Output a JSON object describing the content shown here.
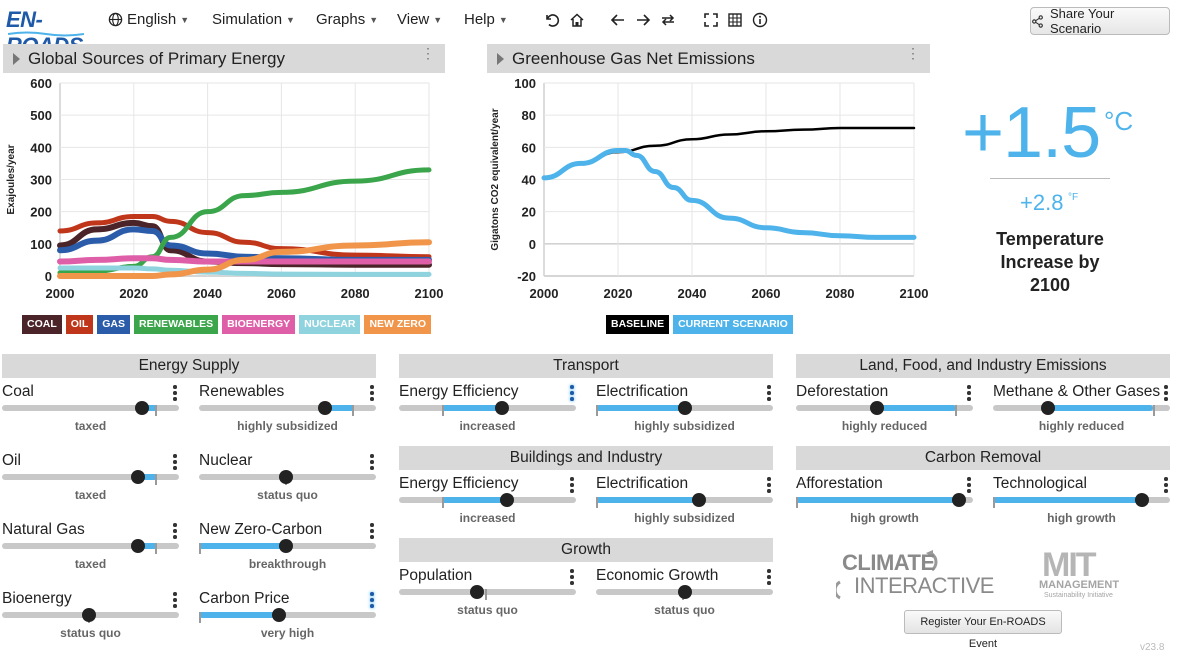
{
  "app": {
    "logo_text": "EN-ROADS"
  },
  "menu": {
    "language": "English",
    "simulation": "Simulation",
    "graphs": "Graphs",
    "view": "View",
    "help": "Help",
    "share": "Share Your Scenario"
  },
  "graph_left": {
    "title": "Global Sources of Primary Energy",
    "legend": [
      {
        "label": "COAL",
        "color": "#4a2428"
      },
      {
        "label": "OIL",
        "color": "#c0361a"
      },
      {
        "label": "GAS",
        "color": "#2a5caa"
      },
      {
        "label": "RENEWABLES",
        "color": "#3aa54a"
      },
      {
        "label": "BIOENERGY",
        "color": "#de5fa8"
      },
      {
        "label": "NUCLEAR",
        "color": "#8fd3df"
      },
      {
        "label": "NEW ZERO",
        "color": "#f0954a"
      }
    ]
  },
  "graph_right": {
    "title": "Greenhouse Gas Net Emissions",
    "legend": [
      {
        "label": "BASELINE",
        "color": "#000000"
      },
      {
        "label": "CURRENT SCENARIO",
        "color": "#4db3ea"
      }
    ]
  },
  "chart_data": [
    {
      "type": "line",
      "ylabel": "Exajoules/year",
      "xlim": [
        2000,
        2100
      ],
      "ylim": [
        0,
        600
      ],
      "xticks": [
        "2000",
        "2020",
        "2040",
        "2060",
        "2080",
        "2100"
      ],
      "yticks": [
        "0",
        "100",
        "200",
        "300",
        "400",
        "500",
        "600"
      ],
      "x": [
        2000,
        2010,
        2020,
        2025,
        2030,
        2040,
        2050,
        2060,
        2080,
        2100
      ],
      "series": [
        {
          "name": "COAL",
          "color": "#4a2428",
          "values": [
            95,
            145,
            165,
            155,
            80,
            45,
            40,
            37,
            35,
            35
          ]
        },
        {
          "name": "OIL",
          "color": "#c0361a",
          "values": [
            140,
            165,
            185,
            185,
            170,
            135,
            105,
            85,
            65,
            60
          ]
        },
        {
          "name": "GAS",
          "color": "#2a5caa",
          "values": [
            80,
            110,
            145,
            140,
            95,
            70,
            60,
            55,
            50,
            50
          ]
        },
        {
          "name": "RENEWABLES",
          "color": "#3aa54a",
          "values": [
            10,
            15,
            30,
            60,
            120,
            200,
            250,
            260,
            295,
            330
          ]
        },
        {
          "name": "BIOENERGY",
          "color": "#de5fa8",
          "values": [
            45,
            50,
            55,
            55,
            50,
            45,
            45,
            45,
            45,
            45
          ]
        },
        {
          "name": "NUCLEAR",
          "color": "#8fd3df",
          "values": [
            25,
            25,
            25,
            22,
            18,
            12,
            8,
            6,
            5,
            5
          ]
        },
        {
          "name": "NEW ZERO",
          "color": "#f0954a",
          "values": [
            0,
            0,
            0,
            0,
            5,
            20,
            50,
            75,
            95,
            105
          ]
        }
      ]
    },
    {
      "type": "line",
      "ylabel": "Gigatons CO2 equivalent/year",
      "xlim": [
        2000,
        2100
      ],
      "ylim": [
        -20,
        100
      ],
      "xticks": [
        "2000",
        "2020",
        "2040",
        "2060",
        "2080",
        "2100"
      ],
      "yticks": [
        "-20",
        "0",
        "20",
        "40",
        "60",
        "80",
        "100"
      ],
      "series": [
        {
          "name": "BASELINE",
          "color": "#000000",
          "x": [
            2000,
            2010,
            2020,
            2030,
            2040,
            2050,
            2060,
            2070,
            2080,
            2100
          ],
          "values": [
            41,
            50,
            57,
            61,
            65,
            68,
            70,
            71,
            72,
            72
          ]
        },
        {
          "name": "CURRENT SCENARIO",
          "color": "#4db3ea",
          "x": [
            2000,
            2010,
            2020,
            2022,
            2025,
            2030,
            2035,
            2040,
            2050,
            2060,
            2070,
            2080,
            2090,
            2100
          ],
          "values": [
            41,
            50,
            58,
            58,
            55,
            45,
            35,
            27,
            16,
            10,
            7,
            5,
            4,
            4
          ]
        }
      ]
    }
  ],
  "temperature": {
    "celsius": "+1.5",
    "celsius_unit": "°C",
    "fahrenheit": "+2.8",
    "fahrenheit_unit": "°F",
    "label": "Temperature Increase by 2100"
  },
  "sections": {
    "energy_supply": "Energy Supply",
    "transport": "Transport",
    "buildings": "Buildings and Industry",
    "growth": "Growth",
    "land": "Land, Food, and Industry Emissions",
    "carbon_removal": "Carbon Removal"
  },
  "sliders": {
    "coal": {
      "name": "Coal",
      "status": "taxed",
      "value": 0.79
    },
    "renewables": {
      "name": "Renewables",
      "status": "highly subsidized",
      "value": 0.71
    },
    "oil": {
      "name": "Oil",
      "status": "taxed",
      "value": 0.77
    },
    "nuclear": {
      "name": "Nuclear",
      "status": "status quo",
      "value": 0.49
    },
    "natural_gas": {
      "name": "Natural Gas",
      "status": "taxed",
      "value": 0.77
    },
    "new_zero_carbon": {
      "name": "New Zero-Carbon",
      "status": "breakthrough",
      "value": 0.49
    },
    "bioenergy": {
      "name": "Bioenergy",
      "status": "status quo",
      "value": 0.49
    },
    "carbon_price": {
      "name": "Carbon Price",
      "status": "very high",
      "value": 0.45
    },
    "transport_efficiency": {
      "name": "Energy Efficiency",
      "status": "increased",
      "value": 0.58
    },
    "transport_electrification": {
      "name": "Electrification",
      "status": "highly subsidized",
      "value": 0.5
    },
    "buildings_efficiency": {
      "name": "Energy Efficiency",
      "status": "increased",
      "value": 0.61
    },
    "buildings_electrification": {
      "name": "Electrification",
      "status": "highly subsidized",
      "value": 0.58
    },
    "population": {
      "name": "Population",
      "status": "status quo",
      "value": 0.44
    },
    "economic_growth": {
      "name": "Economic Growth",
      "status": "status quo",
      "value": 0.5
    },
    "deforestation": {
      "name": "Deforestation",
      "status": "highly reduced",
      "value": 0.46
    },
    "methane": {
      "name": "Methane & Other Gases",
      "status": "highly reduced",
      "value": 0.31
    },
    "afforestation": {
      "name": "Afforestation",
      "status": "high growth",
      "value": 0.92
    },
    "technological": {
      "name": "Technological",
      "status": "high growth",
      "value": 0.84
    }
  },
  "footer": {
    "ci_logo_line1": "CLIMATE",
    "ci_logo_line2": "INTERACTIVE",
    "mit_logo_line1": "MIT",
    "mit_logo_line2": "MANAGEMENT",
    "mit_logo_line3": "Sustainability Initiative",
    "register": "Register Your En-ROADS Event",
    "version": "v23.8"
  }
}
